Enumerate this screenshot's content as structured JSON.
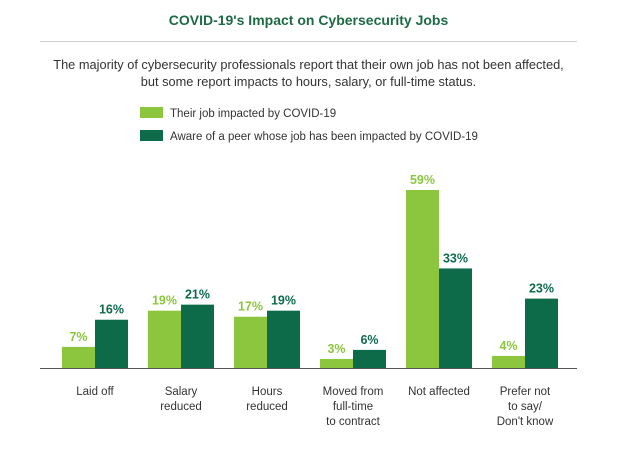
{
  "title": "COVID-19's Impact on Cybersecurity Jobs",
  "subtitle": "The majority of cybersecurity professionals report that their own job has not been affected, but some report impacts to hours, salary, or full-time status.",
  "colors": {
    "title": "#1e6a45",
    "own_job": "#8cc63f",
    "peer_job": "#0e6b4a",
    "axis": "#555555",
    "divider": "#cfcfcf"
  },
  "chart_data": {
    "type": "bar",
    "title": "COVID-19's Impact on Cybersecurity Jobs",
    "xlabel": "",
    "ylabel": "",
    "ylim": [
      0,
      60
    ],
    "grid": false,
    "legend_position": "top-left",
    "categories": [
      [
        "Laid off"
      ],
      [
        "Salary",
        "reduced"
      ],
      [
        "Hours",
        "reduced"
      ],
      [
        "Moved from",
        "full-time",
        "to contract"
      ],
      [
        "Not affected"
      ],
      [
        "Prefer not",
        "to say/",
        "Don't know"
      ]
    ],
    "series": [
      {
        "name": "Their job impacted by COVID-19",
        "values": [
          7,
          19,
          17,
          3,
          59,
          4
        ],
        "labels": [
          "7%",
          "19%",
          "17%",
          "3%",
          "59%",
          "4%"
        ]
      },
      {
        "name": "Aware of a peer whose job has been impacted by COVID-19",
        "values": [
          16,
          21,
          19,
          6,
          33,
          23
        ],
        "labels": [
          "16%",
          "21%",
          "19%",
          "6%",
          "33%",
          "23%"
        ]
      }
    ]
  }
}
